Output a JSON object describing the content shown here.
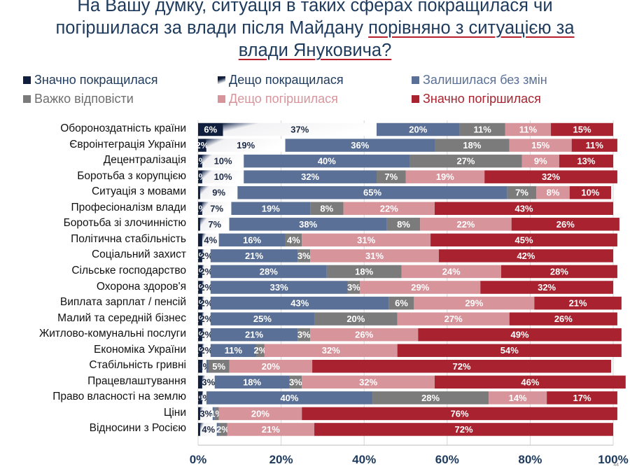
{
  "title": {
    "line1": "На Вашу думку, ситуація в таких сферах покращилася чи",
    "line2_a": "погіршилася за влади після Майдану ",
    "line2_b": "порівняно з ситуацією за",
    "line3": "влади Януковича?"
  },
  "page_number": "44",
  "chart_data": {
    "type": "bar",
    "orientation": "horizontal",
    "stacked": true,
    "percent": true,
    "xlim": [
      0,
      100
    ],
    "x_ticks": [
      "0%",
      "20%",
      "40%",
      "60%",
      "80%",
      "100%"
    ],
    "legend_placement": "top",
    "grid": true,
    "categories": [
      "Обороноздатність країни",
      "Євроінтеграція України",
      "Децентралізація",
      "Боротьба з корупцією",
      "Ситуація з мовами",
      "Професіоналізм влади",
      "Боротьба зі злочинністю",
      "Політична стабільність",
      "Соціальний захист",
      "Сільське господарство",
      "Охорона здоров'я",
      "Виплата зарплат / пенсій",
      "Малий та середній бізнес",
      "Житлово-комунальні послуги",
      "Економіка України",
      "Стабільність гривні",
      "Працевлаштування",
      "Право власності на землю",
      "Ціни",
      "Відносини з Росією"
    ],
    "series": [
      {
        "name": "Значно покращилася",
        "color": "#0f1f3d",
        "values": [
          6,
          2,
          1,
          1,
          0.5,
          1,
          0.5,
          1,
          1,
          1,
          1,
          1,
          1,
          1,
          1,
          1,
          1,
          1,
          0.5,
          0.5
        ],
        "labels": [
          "6%",
          "2%",
          "1%",
          "1%",
          "",
          "1%",
          "",
          "",
          "1%",
          "1%",
          "1%",
          "1%",
          "1%",
          "1%",
          "1%",
          "",
          "",
          "1%",
          "",
          ""
        ]
      },
      {
        "name": "Дещо покращилася",
        "color": "#ffffff",
        "values": [
          37,
          19,
          10,
          10,
          9,
          7,
          7,
          4,
          2,
          2,
          2,
          2,
          2,
          2,
          2,
          1,
          3,
          1,
          3,
          4
        ],
        "labels": [
          "37%",
          "19%",
          "10%",
          "10%",
          "9%",
          "7%",
          "7%",
          "4%",
          "2%",
          "2%",
          "2%",
          "2%",
          "2%",
          "2%",
          "2%",
          "1%",
          "3%",
          "1%",
          "3%",
          "4%"
        ]
      },
      {
        "name": "Залишилася без змін",
        "color": "#5a7096",
        "values": [
          20,
          36,
          40,
          32,
          65,
          19,
          38,
          16,
          21,
          28,
          33,
          43,
          25,
          21,
          11,
          0.5,
          18,
          40,
          0.5,
          0.5
        ],
        "labels": [
          "20%",
          "36%",
          "40%",
          "32%",
          "65%",
          "19%",
          "38%",
          "16%",
          "21%",
          "28%",
          "33%",
          "43%",
          "25%",
          "21%",
          "11%",
          "",
          "18%",
          "40%",
          "",
          ""
        ]
      },
      {
        "name": "Важко відповісти",
        "color": "#7b7b7b",
        "values": [
          11,
          18,
          27,
          7,
          7,
          8,
          8,
          4,
          3,
          18,
          3,
          6,
          20,
          3,
          2,
          5,
          3,
          28,
          1,
          2
        ],
        "labels": [
          "11%",
          "18%",
          "27%",
          "7%",
          "7%",
          "8%",
          "8%",
          "4%",
          "3%",
          "18%",
          "3%",
          "6%",
          "20%",
          "3%",
          "2%",
          "5%",
          "3%",
          "28%",
          "1%",
          "2%"
        ]
      },
      {
        "name": "Дещо погіршилася",
        "color": "#d8949b",
        "values": [
          11,
          15,
          9,
          19,
          8,
          22,
          22,
          31,
          31,
          24,
          29,
          29,
          27,
          26,
          32,
          20,
          32,
          14,
          20,
          21
        ],
        "labels": [
          "11%",
          "15%",
          "9%",
          "19%",
          "8%",
          "22%",
          "22%",
          "31%",
          "31%",
          "24%",
          "29%",
          "29%",
          "27%",
          "26%",
          "32%",
          "20%",
          "32%",
          "14%",
          "20%",
          "21%"
        ]
      },
      {
        "name": "Значно погіршилася",
        "color": "#a8232f",
        "values": [
          15,
          11,
          13,
          32,
          10,
          43,
          26,
          45,
          42,
          28,
          32,
          21,
          26,
          49,
          54,
          72,
          46,
          17,
          76,
          72
        ],
        "labels": [
          "15%",
          "11%",
          "13%",
          "32%",
          "10%",
          "43%",
          "26%",
          "45%",
          "42%",
          "28%",
          "32%",
          "21%",
          "26%",
          "49%",
          "54%",
          "72%",
          "46%",
          "17%",
          "76%",
          "72%"
        ]
      }
    ]
  }
}
